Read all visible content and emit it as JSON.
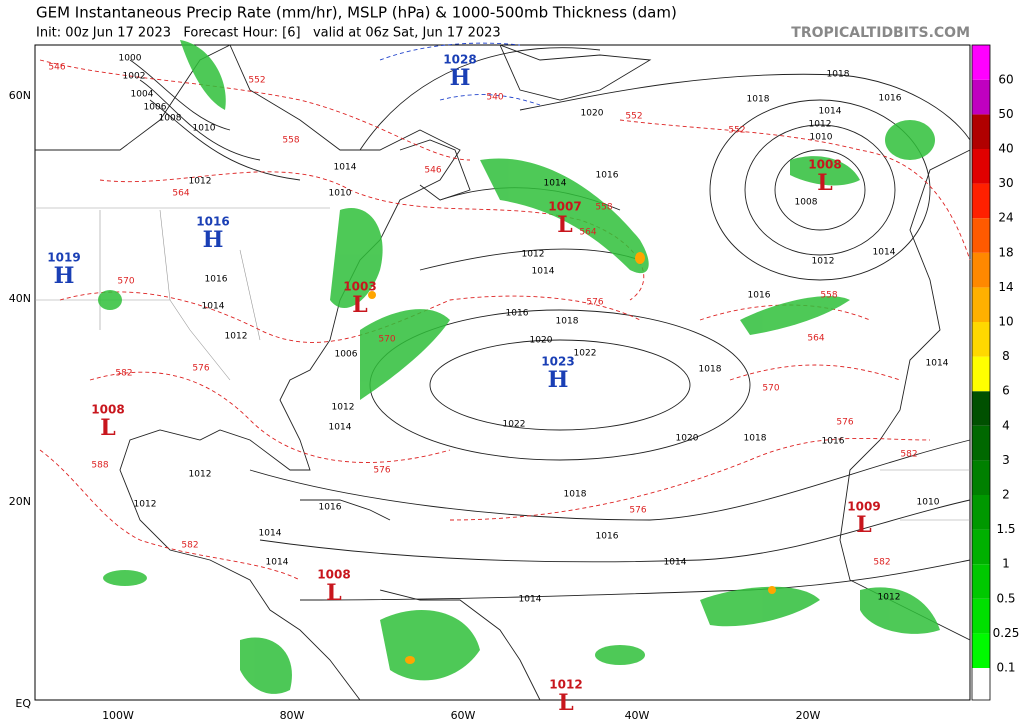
{
  "header": {
    "title": "GEM Instantaneous Precip Rate (mm/hr), MSLP (hPa) & 1000-500mb Thickness (dam)",
    "subtitle": "Init: 00z Jun 17 2023   Forecast Hour: [6]   valid at 06z Sat, Jun 17 2023",
    "watermark": "TROPICALTIDBITS.COM"
  },
  "map": {
    "lon_labels": [
      "100W",
      "80W",
      "60W",
      "40W",
      "20W"
    ],
    "lat_labels": [
      "60N",
      "40N",
      "20N",
      "EQ"
    ],
    "pressure_centers": [
      {
        "type": "H",
        "value": "1028"
      },
      {
        "type": "H",
        "value": "1016"
      },
      {
        "type": "H",
        "value": "1019"
      },
      {
        "type": "L",
        "value": "1003"
      },
      {
        "type": "L",
        "value": "1008"
      },
      {
        "type": "L",
        "value": "1007"
      },
      {
        "type": "L",
        "value": "1008"
      },
      {
        "type": "H",
        "value": "1023"
      },
      {
        "type": "L",
        "value": "1009"
      },
      {
        "type": "L",
        "value": "1008"
      },
      {
        "type": "L",
        "value": "1012"
      }
    ],
    "isobar_labels": [
      "1018",
      "1016",
      "1014",
      "1012",
      "1020",
      "1018",
      "1016",
      "1014",
      "1012",
      "1014",
      "1016",
      "1018",
      "1020",
      "1022",
      "1022",
      "1020",
      "1018",
      "1016",
      "1018",
      "1016",
      "1014",
      "1014",
      "1010",
      "1012",
      "1014",
      "1016",
      "1018",
      "1014",
      "1012",
      "1008",
      "1010",
      "1006",
      "1012",
      "1014",
      "1014",
      "1012",
      "1016",
      "1012",
      "1010",
      "1014",
      "1010",
      "1008",
      "1006",
      "1004",
      "1002",
      "1000",
      "1012",
      "1012",
      "1014",
      "1016",
      "1014"
    ],
    "thickness_labels": [
      "546",
      "552",
      "558",
      "546",
      "564",
      "570",
      "576",
      "582",
      "588",
      "582",
      "576",
      "570",
      "564",
      "558",
      "576",
      "552",
      "552",
      "558",
      "564",
      "570",
      "576",
      "576",
      "582",
      "582",
      "540"
    ]
  },
  "colorbar": {
    "ticks": [
      "0.1",
      "0.25",
      "0.5",
      "1",
      "1.5",
      "2",
      "3",
      "4",
      "6",
      "8",
      "10",
      "14",
      "18",
      "24",
      "30",
      "40",
      "50",
      "60"
    ]
  }
}
